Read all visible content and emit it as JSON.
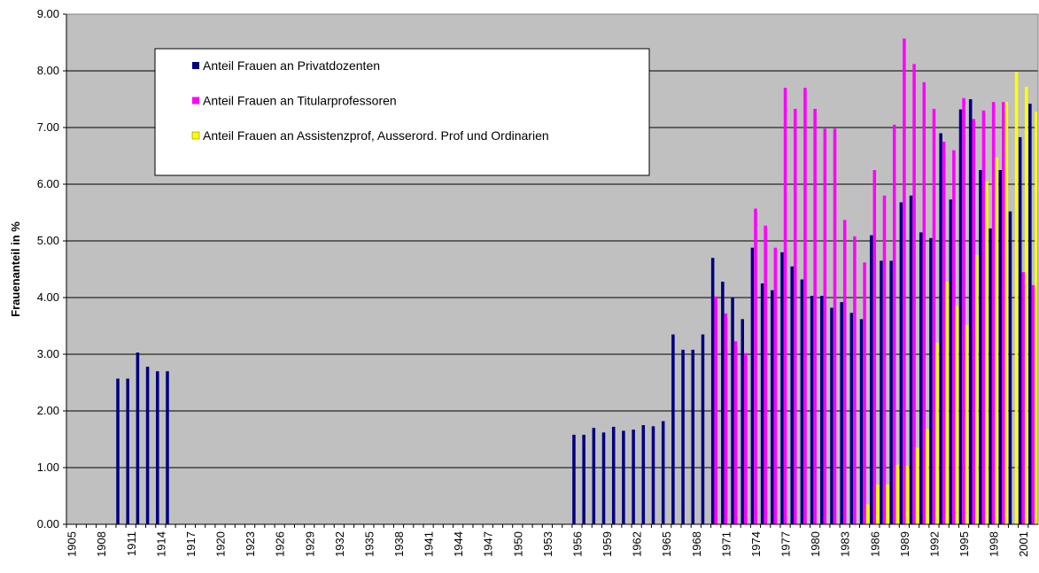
{
  "chart_data": {
    "type": "bar",
    "y_label": "Frauenanteil in %",
    "categories": [
      "1905",
      null,
      null,
      "1908",
      null,
      null,
      "1911",
      null,
      null,
      "1914",
      null,
      null,
      "1917",
      null,
      null,
      "1920",
      null,
      null,
      "1923",
      null,
      null,
      "1926",
      null,
      null,
      "1929",
      null,
      null,
      "1932",
      null,
      null,
      "1935",
      null,
      null,
      "1938",
      null,
      null,
      "1941",
      null,
      null,
      "1944",
      null,
      null,
      "1947",
      null,
      null,
      "1950",
      null,
      null,
      "1953",
      null,
      null,
      "1956",
      null,
      null,
      "1959",
      null,
      null,
      "1962",
      null,
      null,
      "1965",
      null,
      null,
      "1968",
      null,
      null,
      "1971",
      null,
      null,
      "1974",
      null,
      null,
      "1977",
      null,
      null,
      "1980",
      null,
      null,
      "1983",
      null,
      null,
      "1986",
      null,
      null,
      "1989",
      null,
      null,
      "1992",
      null,
      null,
      "1995",
      null,
      null,
      "1998",
      null,
      null,
      "2001",
      null
    ],
    "series": [
      {
        "name": "Anteil Frauen an Privatdozenten",
        "color": "#000080",
        "values": [
          null,
          null,
          null,
          null,
          null,
          2.57,
          2.57,
          3.03,
          2.78,
          2.7,
          2.7,
          null,
          null,
          null,
          null,
          null,
          null,
          null,
          null,
          null,
          null,
          null,
          null,
          null,
          null,
          null,
          null,
          null,
          null,
          null,
          null,
          null,
          null,
          null,
          null,
          null,
          null,
          null,
          null,
          null,
          null,
          null,
          null,
          null,
          null,
          null,
          null,
          null,
          null,
          null,
          null,
          1.58,
          1.58,
          1.7,
          1.62,
          1.72,
          1.65,
          1.67,
          1.75,
          1.73,
          1.82,
          3.35,
          3.08,
          3.08,
          3.35,
          4.7,
          4.28,
          4.0,
          3.62,
          4.88,
          4.25,
          4.13,
          4.8,
          4.55,
          4.32,
          4.03,
          4.03,
          3.82,
          3.92,
          3.73,
          3.62,
          5.1,
          4.65,
          4.65,
          5.68,
          5.8,
          5.15,
          5.05,
          6.9,
          5.73,
          7.32,
          7.5,
          6.25,
          5.22,
          6.25,
          5.52,
          6.83,
          7.42
        ]
      },
      {
        "name": "Anteil Frauen an Titularprofessoren",
        "color": "#ff00ff",
        "values": [
          null,
          null,
          null,
          null,
          null,
          null,
          null,
          null,
          null,
          null,
          null,
          null,
          null,
          null,
          null,
          null,
          null,
          null,
          null,
          null,
          null,
          null,
          null,
          null,
          null,
          null,
          null,
          null,
          null,
          null,
          null,
          null,
          null,
          null,
          null,
          null,
          null,
          null,
          null,
          null,
          null,
          null,
          null,
          null,
          null,
          null,
          null,
          null,
          null,
          null,
          null,
          null,
          null,
          null,
          null,
          null,
          null,
          null,
          null,
          null,
          null,
          null,
          null,
          null,
          null,
          4.02,
          3.72,
          3.23,
          3.02,
          5.57,
          5.27,
          4.88,
          7.7,
          7.33,
          7.7,
          7.33,
          6.98,
          6.98,
          5.37,
          5.08,
          4.62,
          6.25,
          5.8,
          7.05,
          8.57,
          8.12,
          7.8,
          7.33,
          6.75,
          6.6,
          7.52,
          7.15,
          7.3,
          7.45,
          7.45,
          null,
          4.45,
          4.22
        ]
      },
      {
        "name": "Anteil Frauen an Assistenzprof, Ausserord. Prof und Ordinarien",
        "color": "#ffff00",
        "values": [
          null,
          null,
          null,
          null,
          null,
          null,
          null,
          null,
          null,
          null,
          null,
          null,
          null,
          null,
          null,
          null,
          null,
          null,
          null,
          null,
          null,
          null,
          null,
          null,
          null,
          null,
          null,
          null,
          null,
          null,
          null,
          null,
          null,
          null,
          null,
          null,
          null,
          null,
          null,
          null,
          null,
          null,
          null,
          null,
          null,
          null,
          null,
          null,
          null,
          null,
          null,
          null,
          null,
          null,
          null,
          null,
          null,
          null,
          null,
          null,
          null,
          null,
          null,
          null,
          null,
          null,
          null,
          null,
          null,
          null,
          null,
          null,
          null,
          null,
          null,
          null,
          null,
          null,
          null,
          null,
          0.35,
          0.7,
          0.7,
          1.05,
          1.03,
          1.35,
          1.68,
          3.2,
          4.28,
          3.85,
          3.52,
          4.75,
          6.05,
          6.47,
          7.45,
          7.98,
          7.72,
          7.28
        ]
      }
    ],
    "ylim": [
      0,
      9
    ],
    "yticks": [
      {
        "value": 0,
        "label": "0.00"
      },
      {
        "value": 1,
        "label": "1.00"
      },
      {
        "value": 2,
        "label": "2.00"
      },
      {
        "value": 3,
        "label": "3.00"
      },
      {
        "value": 4,
        "label": "4.00"
      },
      {
        "value": 5,
        "label": "5.00"
      },
      {
        "value": 6,
        "label": "6.00"
      },
      {
        "value": 7,
        "label": "7.00"
      },
      {
        "value": 8,
        "label": "8.00"
      },
      {
        "value": 9,
        "label": "9.00"
      }
    ],
    "grid": true,
    "legend": "upper-left"
  }
}
